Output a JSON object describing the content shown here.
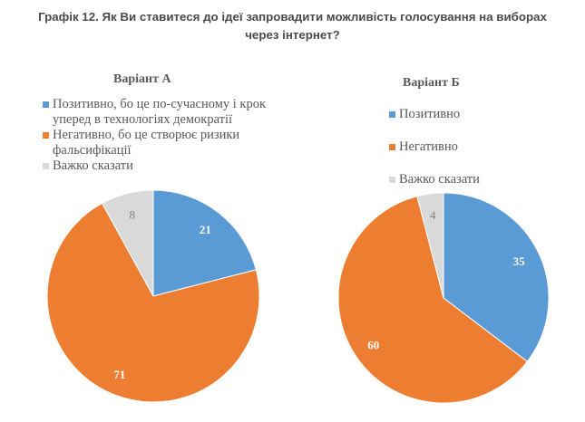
{
  "title_line1": "Графік 12. Як Ви ставитеся до ідеї запровадити можливість голосування на виборах",
  "title_line2": "через інтернет?",
  "colors": {
    "positive": "#5B9BD5",
    "negative": "#ED7D31",
    "unsure": "#D9D9D9"
  },
  "chart_data": [
    {
      "type": "pie",
      "title": "Варіант А",
      "categories": [
        "Позитивно, бо це по-сучасному і крок уперед в технологіях демократії",
        "Негативно, бо це створює ризики фальсифікації",
        "Важко сказати"
      ],
      "values": [
        21,
        71,
        8
      ],
      "legend_position": "top"
    },
    {
      "type": "pie",
      "title": "Варіант Б",
      "categories": [
        "Позитивно",
        "Негативно",
        "Важко сказати"
      ],
      "values": [
        35,
        60,
        4
      ],
      "legend_position": "top"
    }
  ],
  "chartA": {
    "title": "Варіант А",
    "legend": [
      {
        "line1": "Позитивно, бо це по-сучасному і крок",
        "line2": "уперед в технологіях демократії"
      },
      {
        "line1": "Негативно, бо це створює ризики",
        "line2": "фальсифікації"
      },
      {
        "line1": "Важко сказати",
        "line2": ""
      }
    ]
  },
  "chartB": {
    "title": "Варіант Б",
    "legend": [
      {
        "line1": "Позитивно"
      },
      {
        "line1": "Негативно"
      },
      {
        "line1": "Важко сказати"
      }
    ]
  }
}
